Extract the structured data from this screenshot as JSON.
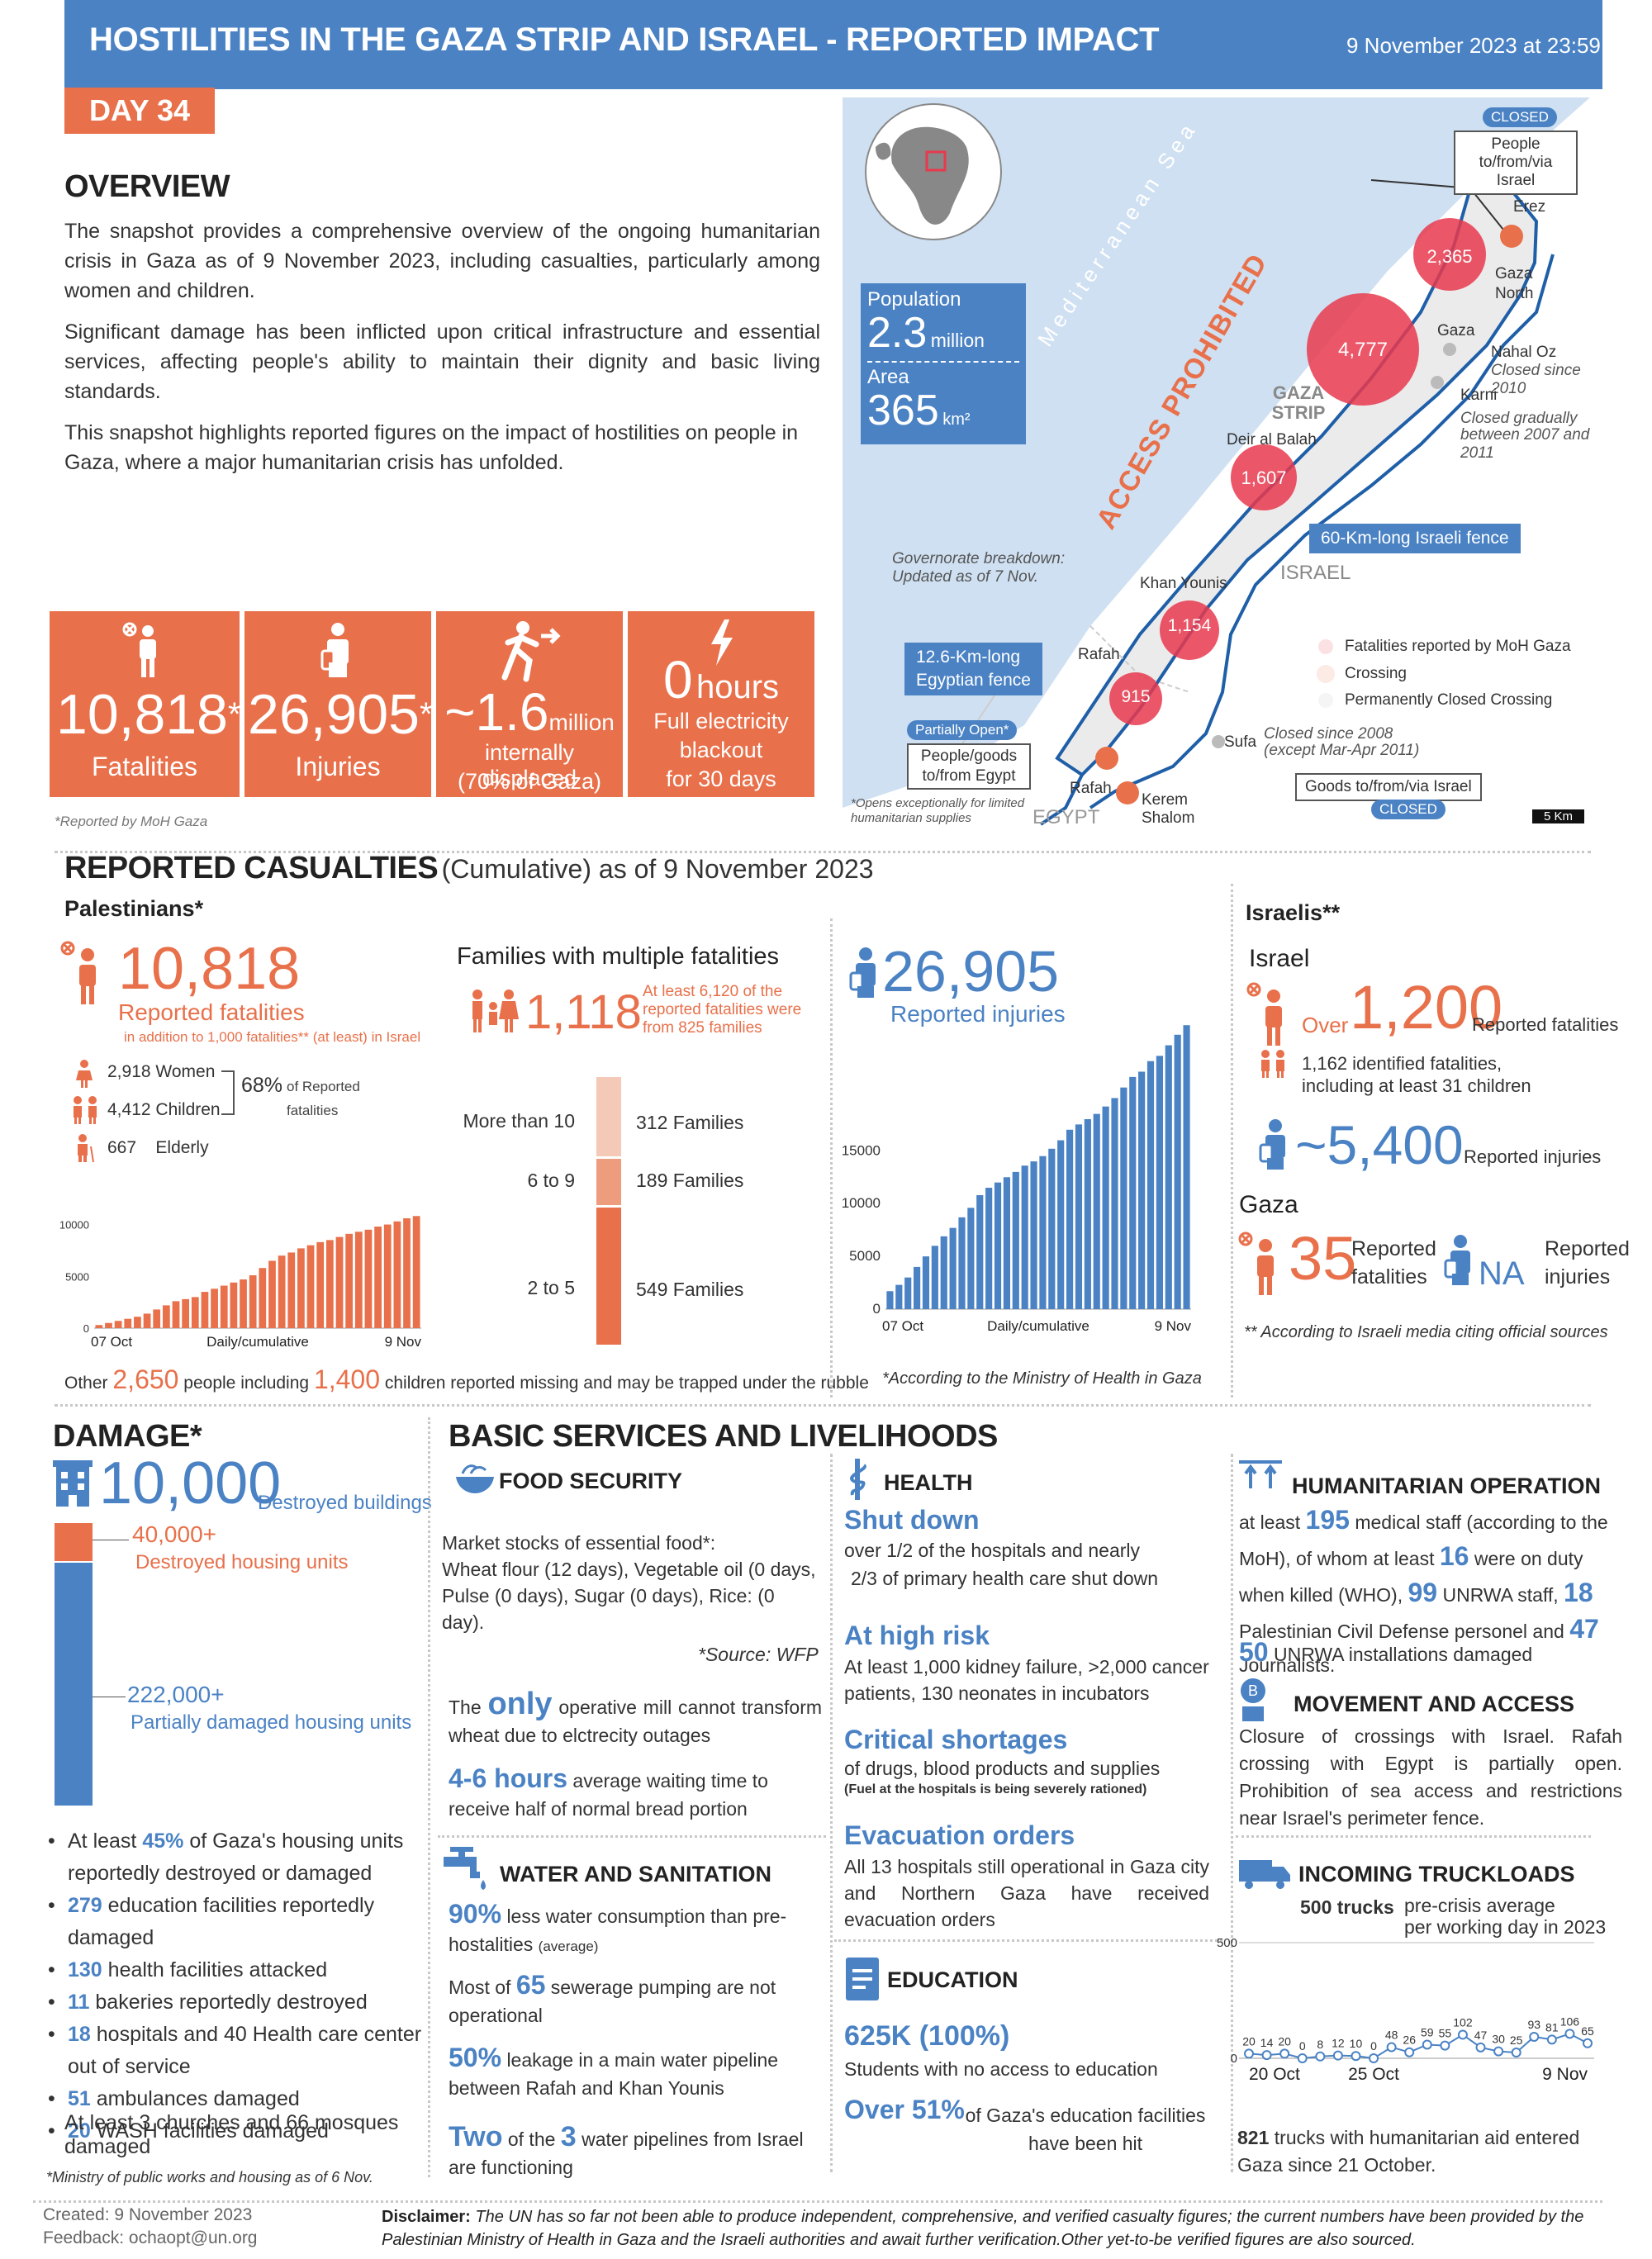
{
  "header": {
    "title": "HOSTILITIES IN THE GAZA STRIP AND ISRAEL - REPORTED IMPACT",
    "datetime": "9 November 2023 at 23:59",
    "day": "DAY 34"
  },
  "overview": {
    "title": "OVERVIEW",
    "p1": "The snapshot provides a comprehensive overview of the ongoing humanitarian crisis in Gaza as of 9 November 2023, including casualties, particularly among women and children.",
    "p2": "Significant damage has been inflicted upon critical infrastructure and essential services, affecting people's ability to maintain their dignity and basic living standards.",
    "p3": "This snapshot highlights reported figures on the impact of hostilities on people in Gaza, where a major humanitarian crisis has unfolded."
  },
  "tiles": {
    "fatalities_value": "10,818",
    "fatalities_star": "*",
    "fatalities_label": "Fatalities",
    "injuries_value": "26,905",
    "injuries_star": "*",
    "injuries_label": "Injuries",
    "displaced_value": "~1.6",
    "displaced_unit": "million",
    "displaced_label1": "internally displaced",
    "displaced_label2": "(70% of Gaza)",
    "blackout_value": "0",
    "blackout_unit": "hours",
    "blackout_label1": "Full electricity",
    "blackout_label2": "blackout",
    "blackout_label3": "for 30 days",
    "footnote": "*Reported by MoH Gaza"
  },
  "map": {
    "closed_badge_top": "CLOSED",
    "erez_box": "People to/from/via Israel",
    "erez": "Erez",
    "gaza_north": "Gaza North",
    "gaza_north_value": "2,365",
    "gaza": "Gaza",
    "gaza_value": "4,777",
    "nahal_oz": "Nahal Oz",
    "nahal_oz_note": "Closed since 2010",
    "karni": "Karni",
    "karni_note1": "Closed gradually",
    "karni_note2": "between 2007 and 2011",
    "gaza_strip": "GAZA STRIP",
    "deir": "Deir al Balah",
    "deir_value": "1,607",
    "sea": "Mediterranean Sea",
    "access": "ACCESS PROHIBITED",
    "fence_israel": "60-Km-long Israeli fence",
    "israel": "ISRAEL",
    "gov_note1": "Governorate breakdown:",
    "gov_note2": "Updated as of 7 Nov.",
    "khan": "Khan Younis",
    "khan_value": "1,154",
    "rafah": "Rafah",
    "rafah_value": "915",
    "egypt_fence1": "12.6-Km-long",
    "egypt_fence2": "Egyptian fence",
    "partially": "Partially Open*",
    "goods_egypt1": "People/goods",
    "goods_egypt2": "to/from Egypt",
    "opens_note1": "*Opens exceptionally for limited",
    "opens_note2": "humanitarian supplies",
    "rafah_cross": "Rafah",
    "egypt": "EGYPT",
    "kerem": "Kerem Shalom",
    "sufa": "Sufa",
    "sufa_note1": "Closed since 2008",
    "sufa_note2": "(except Mar-Apr 2011)",
    "goods_israel": "Goods to/from/via Israel",
    "closed_badge_bottom": "CLOSED",
    "scale": "5 Km",
    "legend_fatal": "Fatalities reported by MoH Gaza",
    "legend_crossing": "Crossing",
    "legend_closed": "Permanently Closed Crossing",
    "pop_label": "Population",
    "pop_value": "2.3",
    "pop_unit": "million",
    "area_label": "Area",
    "area_value": "365",
    "area_unit": "km²",
    "colors": {
      "land": "#ffffff",
      "sea": "#cfe0f2",
      "bubble": "#e8394e",
      "crossing": "#e8704a",
      "fence": "#1f5fa8"
    }
  },
  "casualties": {
    "title": "REPORTED CASUALTIES",
    "title_sub": "(Cumulative) as of 9 November 2023",
    "palestinians": "Palestinians*",
    "fat_value": "10,818",
    "fat_label": "Reported fatalities",
    "fat_sub": "in addition to 1,000 fatalities** (at least) in Israel",
    "women_n": "2,918",
    "women": "Women",
    "children_n": "4,412",
    "children": "Children",
    "elderly_n": "667",
    "elderly": "Elderly",
    "share": "68%",
    "share_label1": "of Reported",
    "share_label2": "fatalities",
    "families_title": "Families with multiple fatalities",
    "families_value": "1,118",
    "families_note1": "At least 6,120 of the",
    "families_note2": "reported fatalities were",
    "families_note3": "from 825 families",
    "fam_row1_label": "More than 10",
    "fam_row1_value": "312 Families",
    "fam_row2_label": "6 to 9",
    "fam_row2_value": "189 Families",
    "fam_row3_label": "2 to 5",
    "fam_row3_value": "549  Families",
    "inj_value": "26,905",
    "inj_label": "Reported injuries",
    "inj_source": "*According to the Ministry of Health in Gaza",
    "missing_pre": "Other",
    "missing_n": "2,650",
    "missing_mid": "people including",
    "missing_c": "1,400",
    "missing_post": "children reported missing and  may be trapped under the rubble",
    "israelis": "Israelis**",
    "israel": "Israel",
    "isr_over": "Over",
    "isr_fat": "1,200",
    "isr_fat_label": "Reported fatalities",
    "isr_ident1": "1,162 identified fatalities,",
    "isr_ident2": "including at least 31 children",
    "isr_inj": "~5,400",
    "isr_inj_label": "Reported injuries",
    "gaza": "Gaza",
    "gaza_fat": "35",
    "gaza_fat_label1": "Reported",
    "gaza_fat_label2": "fatalities",
    "gaza_inj": "NA",
    "gaza_inj_label1": "Reported",
    "gaza_inj_label2": "injuries",
    "isr_note": "** According to Israeli media citing official sources"
  },
  "chart_data": [
    {
      "type": "bar",
      "title": "",
      "xlabel": "Daily/cumulative",
      "ylabel": "",
      "x_start": "07 Oct",
      "x_end": "9 Nov",
      "ylim": [
        0,
        11000
      ],
      "yticks": [
        0,
        5000,
        10000
      ],
      "color": "#e8704a",
      "values": [
        300,
        500,
        700,
        900,
        1100,
        1400,
        1800,
        2200,
        2600,
        2800,
        3000,
        3500,
        3800,
        4100,
        4400,
        4700,
        5100,
        5800,
        6500,
        7000,
        7300,
        7700,
        8000,
        8300,
        8500,
        8800,
        9100,
        9300,
        9500,
        9800,
        10000,
        10300,
        10600,
        10818
      ]
    },
    {
      "type": "bar",
      "title": "",
      "xlabel": "Daily/cumulative",
      "ylabel": "",
      "x_start": "07 Oct",
      "x_end": "9 Nov",
      "ylim": [
        0,
        27000
      ],
      "yticks": [
        0,
        5000,
        10000,
        15000
      ],
      "color": "#4a82c4",
      "values": [
        1700,
        2300,
        3000,
        4000,
        5000,
        6000,
        6900,
        7700,
        8700,
        9600,
        10800,
        11500,
        12000,
        12500,
        13000,
        13600,
        14000,
        14500,
        15200,
        16000,
        17000,
        17500,
        18000,
        18500,
        19200,
        20000,
        21000,
        22000,
        22500,
        23500,
        24000,
        25000,
        26000,
        26905
      ]
    },
    {
      "type": "line",
      "title": "",
      "xlabel": "",
      "ylabel": "",
      "x_labels": [
        "20 Oct",
        "25 Oct",
        "9 Nov"
      ],
      "ylim": [
        0,
        500
      ],
      "yticks": [
        0,
        500
      ],
      "color": "#4a82c4",
      "values": [
        20,
        14,
        20,
        0,
        8,
        12,
        10,
        0,
        48,
        26,
        59,
        55,
        102,
        47,
        30,
        25,
        93,
        81,
        106,
        65
      ],
      "value_labels": [
        "20",
        "14",
        "20",
        "0",
        "8",
        "12",
        "10",
        "0",
        "48",
        "26",
        "59",
        "55",
        "102",
        "47",
        "30",
        "25",
        "93",
        "81",
        "106",
        "65"
      ]
    }
  ],
  "damage": {
    "title": "DAMAGE*",
    "buildings_value": "10,000",
    "buildings_label": "Destroyed buildings",
    "destroyed_value": "40,000+",
    "destroyed_label": "Destroyed housing units",
    "partial_value": "222,000+",
    "partial_label": "Partially damaged housing units",
    "bullets": [
      {
        "pre": "At least ",
        "hl": "45%",
        "post": " of Gaza's housing units reportedly destroyed or damaged"
      },
      {
        "pre": "",
        "hl": "279",
        "post": " education facilities reportedly damaged"
      },
      {
        "pre": "",
        "hl": "130",
        "post": "  health facilities attacked"
      },
      {
        "pre": "",
        "hl": "11",
        "post": " bakeries reportedly destroyed"
      },
      {
        "pre": "",
        "hl": "18",
        "post": " hospitals and 40 Health care center out of service"
      },
      {
        "pre": "",
        "hl": "51",
        "post": " ambulances damaged"
      },
      {
        "pre": "",
        "hl": "20",
        "post": " WASH facilities damaged"
      }
    ],
    "churches": "At least 3 churches and 66 mosques damaged",
    "footnote": "*Ministry of public works and housing as of 6 Nov."
  },
  "services": {
    "title": "BASIC SERVICES AND LIVELIHOODS",
    "food_title": "FOOD SECURITY",
    "food_p1": "Market stocks of essential food*:",
    "food_p2": "Wheat flour (12 days), Vegetable oil (0 days, Pulse (0 days), Sugar (0 days), Rice: (0 day).",
    "food_source": "*Source: WFP",
    "mill_pre": "The",
    "mill_hl": "only",
    "mill_post": "operative mill cannot transform wheat due to elctrecity outages",
    "wait_hl": "4-6 hours",
    "wait_post": "average waiting time to receive half of normal bread portion",
    "water_title": "WATER AND SANITATION",
    "water_hl": "90%",
    "water_post": "less water consumption than pre-hostalities",
    "water_avg": "(average)",
    "sewer_pre": "Most of",
    "sewer_hl": "65",
    "sewer_post": "sewerage pumping are not operational",
    "leak_hl": "50%",
    "leak_post": "leakage  in a main water pipeline  between Rafah and Khan Younis",
    "pipe_hl1": "Two",
    "pipe_mid": "of the",
    "pipe_hl2": "3",
    "pipe_post": "water pipelines from Israel are functioning",
    "health_title": "HEALTH",
    "shut_title": "Shut down",
    "shut_p1": "over 1/2 of the hospitals and nearly",
    "shut_p2": "2/3 of primary health care shut down",
    "risk_title": "At high risk",
    "risk_p": "At least 1,000  kidney failure, >2,000 cancer patients, 130 neonates in incubators",
    "crit_title": "Critical shortages",
    "crit_p": "of drugs, blood products and supplies",
    "crit_note": "(Fuel at the hospitals is being severely rationed)",
    "evac_title": "Evacuation orders",
    "evac_p": "All 13 hospitals still operational in Gaza city and Northern Gaza have received evacuation orders",
    "edu_title": "EDUCATION",
    "edu_hl": "625K (100%)",
    "edu_p": "Students with no access to education",
    "edu_hl2": "Over 51%",
    "edu_p2": "of Gaza's education facilities have been hit",
    "hum_title": "HUMANITARIAN OPERATION",
    "hum_p": "at least 195 medical staff (according to the MoH), of whom at least 16 were on duty when killed (WHO), 99 UNRWA staff, 18 Palestinian Civil Defense personel and 47 Journalists.",
    "hum_p2_hl": "50",
    "hum_p2": "UNRWA installations damaged",
    "mov_title": "MOVEMENT AND ACCESS",
    "mov_p": "Closure of crossings with Israel. Rafah crossing with Egypt is partially open. Prohibition of sea access and restrictions near Israel's perimeter fence.",
    "truck_title": "INCOMING TRUCKLOADS",
    "truck_pre": "500 trucks",
    "truck_note1": "pre-crisis average",
    "truck_note2": "per working day in 2023",
    "truck_total_hl": "821",
    "truck_total": "trucks with humanitarian aid entered Gaza since 21 October."
  },
  "footer": {
    "created": "Created: 9 November 2023",
    "feedback": "Feedback: ochaopt@un.org",
    "disclaimer_label": "Disclaimer:",
    "disclaimer": "The UN has so far not been able to produce independent, comprehensive, and verified casualty figures; the current numbers have been provided by the Palestinian Ministry of Health in Gaza and the Israeli authorities and await further verification.Other yet-to-be verified figures are also sourced."
  }
}
